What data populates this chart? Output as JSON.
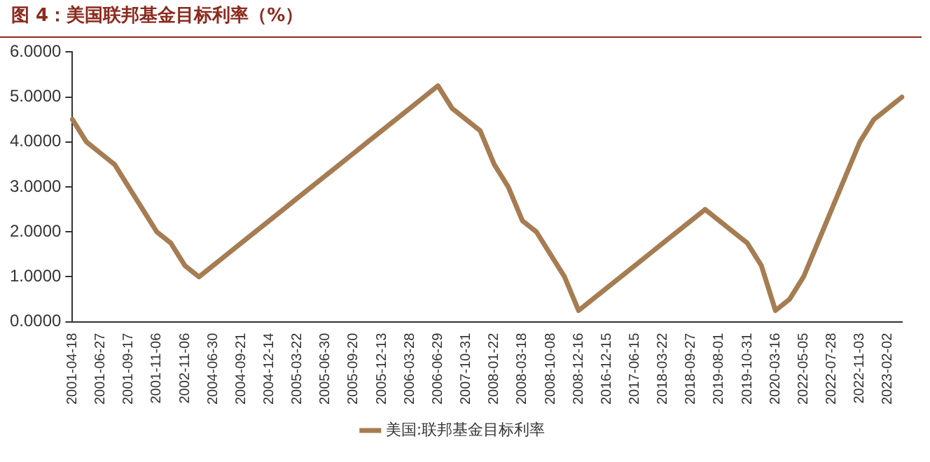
{
  "chart_data": {
    "type": "line",
    "title": "图 4：美国联邦基金目标利率（%）",
    "categories": [
      "2001-04-18",
      null,
      "2001-06-27",
      null,
      "2001-09-17",
      null,
      "2001-11-06",
      null,
      "2002-11-06",
      null,
      "2004-06-30",
      null,
      "2004-09-21",
      null,
      "2004-12-14",
      null,
      "2005-03-22",
      null,
      "2005-06-30",
      null,
      "2005-09-20",
      null,
      "2005-12-13",
      null,
      "2006-03-28",
      null,
      "2006-06-29",
      null,
      "2007-10-31",
      null,
      "2008-01-22",
      null,
      "2008-03-18",
      null,
      "2008-10-08",
      null,
      "2008-12-16",
      null,
      "2016-12-15",
      null,
      "2017-06-15",
      null,
      "2018-03-22",
      null,
      "2018-09-27",
      null,
      "2019-08-01",
      null,
      "2019-10-31",
      null,
      "2020-03-16",
      null,
      "2022-05-05",
      null,
      "2022-07-28",
      null,
      "2022-11-03",
      null,
      "2023-02-02",
      null
    ],
    "series": [
      {
        "name": "美国:联邦基金目标利率",
        "color": "#a67c52",
        "values": [
          4.5,
          4.0,
          3.75,
          3.5,
          3.0,
          2.5,
          2.0,
          1.75,
          1.25,
          1.0,
          1.25,
          1.5,
          1.75,
          2.0,
          2.25,
          2.5,
          2.75,
          3.0,
          3.25,
          3.5,
          3.75,
          4.0,
          4.25,
          4.5,
          4.75,
          5.0,
          5.25,
          4.75,
          4.5,
          4.25,
          3.5,
          3.0,
          2.25,
          2.0,
          1.5,
          1.0,
          0.25,
          0.5,
          0.75,
          1.0,
          1.25,
          1.5,
          1.75,
          2.0,
          2.25,
          2.5,
          2.25,
          2.0,
          1.75,
          1.25,
          0.25,
          0.5,
          1.0,
          1.75,
          2.5,
          3.25,
          4.0,
          4.5,
          4.75,
          5.0
        ]
      }
    ],
    "ylim": [
      0,
      6
    ],
    "yticks": [
      {
        "value": 0,
        "label": "0.0000"
      },
      {
        "value": 1,
        "label": "1.0000"
      },
      {
        "value": 2,
        "label": "2.0000"
      },
      {
        "value": 3,
        "label": "3.0000"
      },
      {
        "value": 4,
        "label": "4.0000"
      },
      {
        "value": 5,
        "label": "5.0000"
      },
      {
        "value": 6,
        "label": "6.0000"
      }
    ],
    "grid": false,
    "legend": "bottom",
    "marker": "none",
    "line_style": "solid"
  }
}
